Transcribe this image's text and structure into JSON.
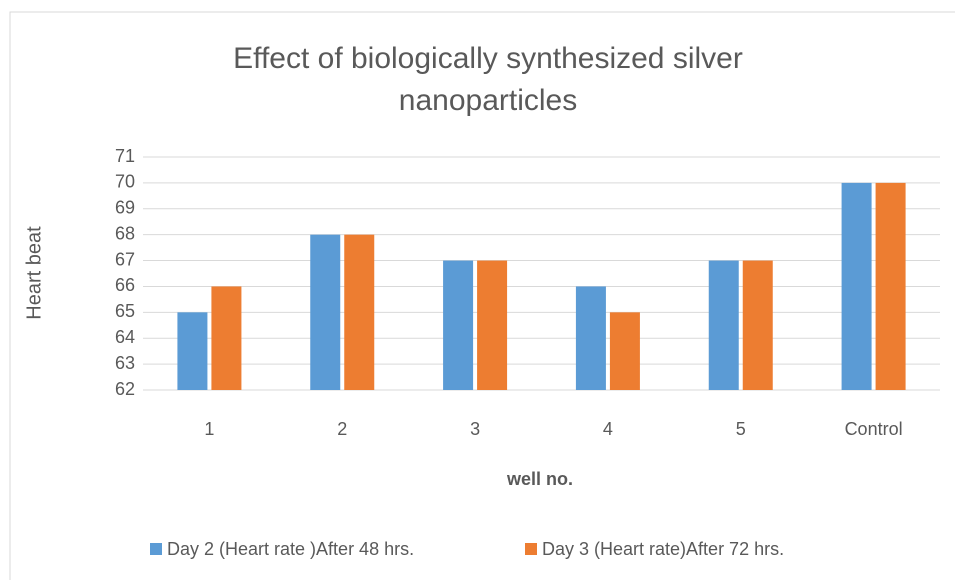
{
  "chart_data": {
    "type": "bar",
    "title": "Effect of biologically synthesized silver nanoparticles",
    "x_label": "well no.",
    "y_label": "Heart  beat",
    "categories": [
      "1",
      "2",
      "3",
      "4",
      "5",
      "Control"
    ],
    "series": [
      {
        "name": "Day 2 (Heart rate )After 48 hrs.",
        "color": "#5b9bd5",
        "values": [
          65,
          68,
          67,
          66,
          67,
          70
        ]
      },
      {
        "name": "Day 3 (Heart rate)After 72 hrs.",
        "color": "#ed7d31",
        "values": [
          66,
          68,
          67,
          65,
          67,
          70
        ]
      }
    ],
    "ylim": [
      62,
      71
    ],
    "yticks": [
      62,
      63,
      64,
      65,
      66,
      67,
      68,
      69,
      70,
      71
    ],
    "grid": true,
    "legend": "bottom"
  }
}
